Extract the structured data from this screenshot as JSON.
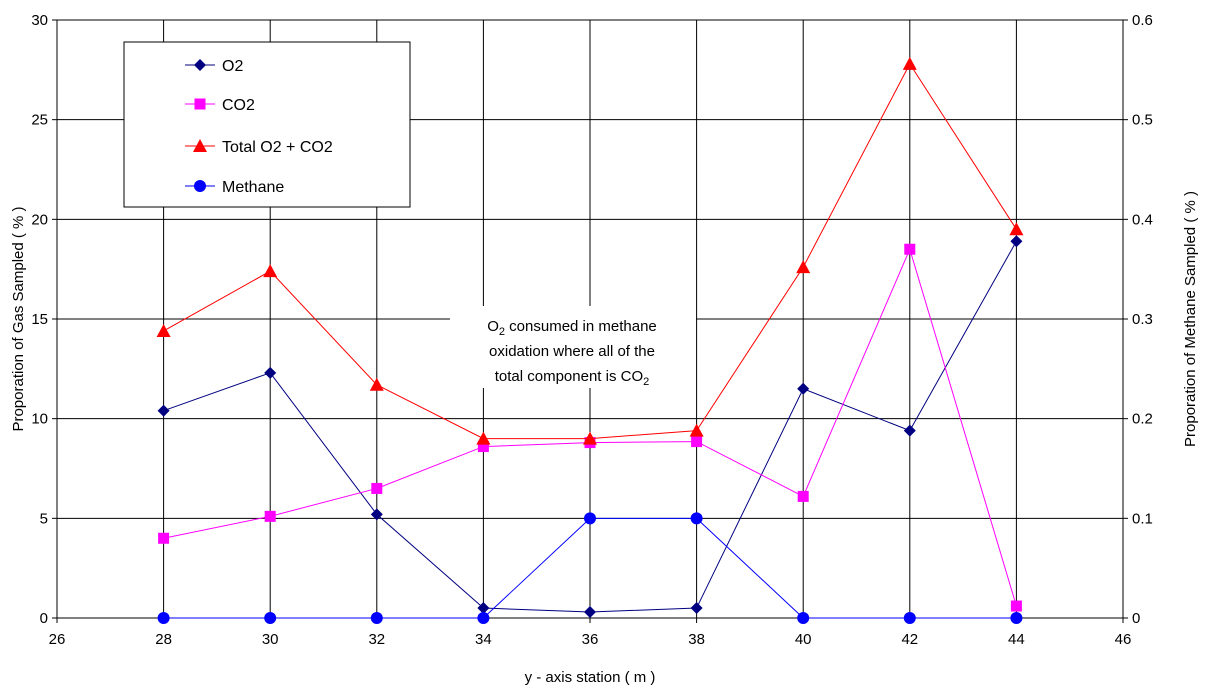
{
  "chart_data": {
    "type": "line",
    "xlabel": "y - axis station  ( m )",
    "ylabel": "Proporation of Gas Sampled  ( % )",
    "y2label": "Proporation of Methane Sampled  ( % )",
    "xlim": [
      26,
      46
    ],
    "ylim": [
      0,
      30
    ],
    "y2lim": [
      0,
      0.6
    ],
    "x_ticks": [
      "26",
      "28",
      "30",
      "32",
      "34",
      "36",
      "38",
      "40",
      "42",
      "44",
      "46"
    ],
    "y_ticks": [
      "0",
      "5",
      "10",
      "15",
      "20",
      "25",
      "30"
    ],
    "y2_ticks": [
      "0",
      "0.1",
      "0.2",
      "0.3",
      "0.4",
      "0.5",
      "0.6"
    ],
    "grid": true,
    "legend_position": "top-left",
    "x": [
      28,
      30,
      32,
      34,
      36,
      38,
      40,
      42,
      44
    ],
    "series": [
      {
        "name": "O2",
        "axis": "left",
        "color": "#000080",
        "marker": "diamond",
        "values": [
          10.4,
          12.3,
          5.2,
          0.5,
          0.3,
          0.5,
          11.5,
          9.4,
          18.9
        ]
      },
      {
        "name": "CO2",
        "axis": "left",
        "color": "#FF00FF",
        "marker": "square",
        "values": [
          4.0,
          5.1,
          6.5,
          8.6,
          8.8,
          8.85,
          6.1,
          18.5,
          0.6
        ]
      },
      {
        "name": "Total O2 + CO2",
        "axis": "left",
        "color": "#FF0000",
        "marker": "triangle",
        "values": [
          14.4,
          17.4,
          11.7,
          9.0,
          9.0,
          9.4,
          17.6,
          27.8,
          19.5
        ]
      },
      {
        "name": "Methane",
        "axis": "right",
        "color": "#0000FF",
        "marker": "circle",
        "values": [
          0,
          0,
          0,
          0,
          0.1,
          0.1,
          0,
          0,
          0
        ]
      }
    ],
    "annotation": {
      "line1_pre": "O",
      "line1_sub": "2",
      "line1_post": " consumed in methane",
      "line2": "oxidation where all of the",
      "line3_pre": "total component is CO",
      "line3_sub": "2"
    }
  }
}
